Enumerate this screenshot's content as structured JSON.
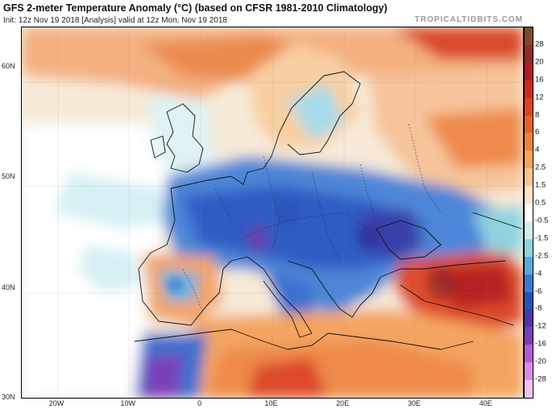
{
  "header": {
    "title": "GFS 2-meter Temperature Anomaly (°C) (based on CFSR 1981-2010 Climatology)",
    "subtitle": "Init: 12z Nov 19 2018  [Analysis]   valid at 12z Mon, Nov 19 2018",
    "brand": "TROPICALTIDBITS.COM"
  },
  "map": {
    "lat_labels": [
      {
        "text": "60N",
        "lat": 60
      },
      {
        "text": "50N",
        "lat": 50
      },
      {
        "text": "40N",
        "lat": 40
      },
      {
        "text": "30N",
        "lat": 30
      }
    ],
    "lon_labels": [
      {
        "text": "20W",
        "lon": -20
      },
      {
        "text": "10W",
        "lon": -10
      },
      {
        "text": "0",
        "lon": 0
      },
      {
        "text": "10E",
        "lon": 10
      },
      {
        "text": "20E",
        "lon": 20
      },
      {
        "text": "30E",
        "lon": 30
      },
      {
        "text": "40E",
        "lon": 40
      }
    ]
  },
  "colorbar": {
    "labels": [
      "28",
      "20",
      "16",
      "12",
      "8",
      "6",
      "4",
      "2.5",
      "1.5",
      "0.5",
      "-0.5",
      "-1.5",
      "-2.5",
      "-4",
      "-6",
      "-8",
      "-12",
      "-16",
      "-20",
      "-28"
    ],
    "colors": [
      "#7a4a2c",
      "#8f2a2a",
      "#b01b2a",
      "#cc2a1f",
      "#dd4320",
      "#e6602a",
      "#ee8040",
      "#f4a460",
      "#f8c690",
      "#fbe6c8",
      "#ffffff",
      "#cfeef2",
      "#8fd3e0",
      "#5aa8dc",
      "#3a78d0",
      "#2a4fb8",
      "#4a38a8",
      "#7a3fb8",
      "#b35ad0",
      "#d88ae4",
      "#f0c2f2"
    ]
  }
}
